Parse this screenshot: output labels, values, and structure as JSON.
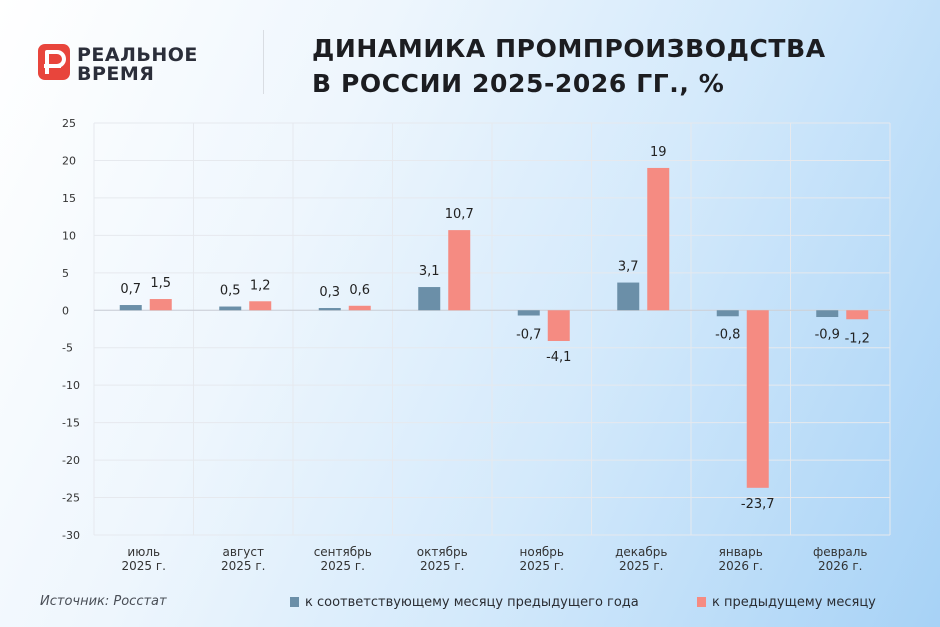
{
  "logo": {
    "line1": "РЕАЛЬНОЕ",
    "line2": "ВРЕМЯ",
    "brand_color": "#e8453c"
  },
  "title": {
    "line1": "ДИНАМИКА ПРОМПРОИЗВОДСТВА",
    "line2": "В РОССИИ 2025-2026 ГГ., %"
  },
  "source": "Источник: Росстат",
  "chart_data": {
    "type": "bar",
    "ylim": [
      -30,
      25
    ],
    "yticks": [
      25,
      20,
      15,
      10,
      5,
      0,
      -5,
      -10,
      -15,
      -20,
      -25,
      -30
    ],
    "grid": true,
    "legend_position": "bottom",
    "categories": [
      [
        "июль",
        "2025 г."
      ],
      [
        "август",
        "2025 г."
      ],
      [
        "сентябрь",
        "2025 г."
      ],
      [
        "октябрь",
        "2025 г."
      ],
      [
        "ноябрь",
        "2025 г."
      ],
      [
        "декабрь",
        "2025 г."
      ],
      [
        "январь",
        "2026 г."
      ],
      [
        "февраль",
        "2026 г."
      ]
    ],
    "series": [
      {
        "name": "к соответствующему месяцу предыдущего года",
        "color": "#6b8fa8",
        "values": [
          0.7,
          0.5,
          0.3,
          3.1,
          -0.7,
          3.7,
          -0.8,
          -0.9
        ],
        "labels": [
          "0,7",
          "0,5",
          "0,3",
          "3,1",
          "-0,7",
          "3,7",
          "-0,8",
          "-0,9"
        ]
      },
      {
        "name": "к предыдущему месяцу",
        "color": "#f58b82",
        "values": [
          1.5,
          1.2,
          0.6,
          10.7,
          -4.1,
          19,
          -23.7,
          -1.2
        ],
        "labels": [
          "1,5",
          "1,2",
          "0,6",
          "10,7",
          "-4,1",
          "19",
          "-23,7",
          "-1,2"
        ]
      }
    ]
  }
}
